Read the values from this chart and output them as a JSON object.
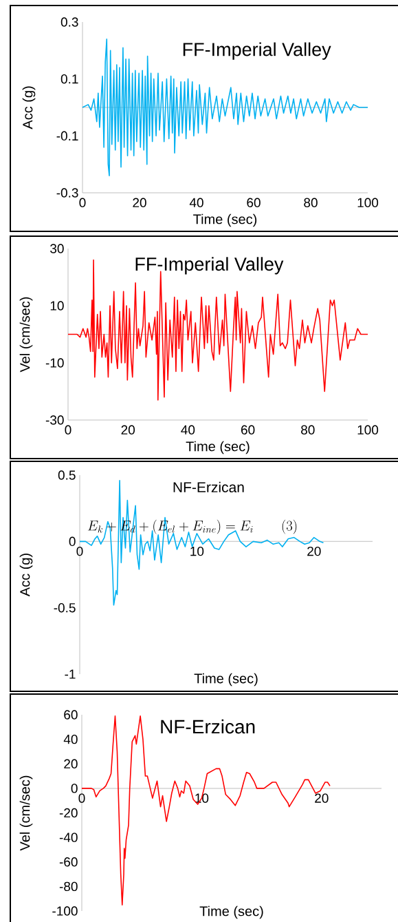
{
  "chart_data": [
    {
      "type": "line",
      "title": "FF-Imperial Valley",
      "xlabel": "Time (sec)",
      "ylabel": "Acc (g)",
      "xlim": [
        0,
        100
      ],
      "ylim": [
        -0.3,
        0.3
      ],
      "xticks": [
        0,
        20,
        40,
        60,
        80,
        100
      ],
      "yticks": [
        -0.3,
        -0.1,
        0.1,
        0.3
      ],
      "x": [
        0,
        2,
        3,
        4,
        5,
        5.5,
        6,
        7,
        7.5,
        8,
        8.5,
        9,
        9.4,
        9.8,
        10.3,
        11,
        11.5,
        12,
        12.5,
        13,
        13.5,
        14.2,
        14.6,
        15.2,
        15.8,
        16.3,
        17,
        17.5,
        18,
        18.5,
        19,
        19.8,
        20.3,
        21,
        21.5,
        22,
        22.6,
        22.8,
        23.5,
        24,
        24.5,
        25,
        25.8,
        26.5,
        27,
        28,
        28.6,
        29.5,
        30.3,
        31,
        31.5,
        32,
        32.3,
        33,
        33.8,
        34.5,
        35,
        35.8,
        36.3,
        37,
        37.6,
        38.5,
        39,
        40,
        40.6,
        41,
        42,
        43,
        43.5,
        44.5,
        45.5,
        47,
        48,
        49,
        50,
        52,
        53,
        54,
        54.5,
        55.5,
        56.5,
        57.5,
        58.5,
        59.5,
        60.5,
        61.5,
        62.5,
        64,
        65,
        67,
        68,
        69.5,
        70.5,
        72,
        73,
        74,
        75,
        76.5,
        77.5,
        79,
        80.5,
        82,
        83.5,
        85,
        85.5,
        86.5,
        88,
        89.5,
        91,
        92.5,
        94,
        95,
        97,
        100
      ],
      "series": [
        {
          "color": "#00b0f0",
          "values": [
            0,
            0.01,
            -0.01,
            0.03,
            -0.05,
            0.05,
            -0.07,
            0.11,
            -0.14,
            0.16,
            0.24,
            -0.2,
            -0.24,
            0.2,
            -0.13,
            0.13,
            -0.15,
            0.15,
            -0.12,
            0.14,
            -0.21,
            0.21,
            -0.14,
            0.17,
            -0.17,
            0.17,
            -0.15,
            0.12,
            -0.17,
            0.13,
            -0.12,
            0.12,
            -0.14,
            0.13,
            -0.15,
            0.11,
            -0.2,
            0.18,
            -0.1,
            0.12,
            -0.12,
            0.1,
            -0.1,
            0.12,
            -0.08,
            0.09,
            -0.12,
            0.1,
            -0.11,
            0.11,
            -0.09,
            0.1,
            -0.16,
            0.07,
            -0.1,
            0.09,
            -0.09,
            0.09,
            -0.11,
            0.1,
            -0.08,
            0.09,
            -0.1,
            0.06,
            -0.09,
            0.08,
            -0.06,
            0.05,
            -0.09,
            0.07,
            -0.04,
            0.04,
            -0.05,
            0.03,
            -0.03,
            0.07,
            -0.04,
            0.05,
            -0.06,
            0.05,
            -0.05,
            0.04,
            -0.03,
            0.05,
            -0.04,
            0.04,
            -0.03,
            0.03,
            -0.03,
            0.03,
            -0.04,
            0.04,
            -0.02,
            0.04,
            -0.02,
            0.03,
            -0.04,
            0.03,
            -0.03,
            0.03,
            -0.02,
            0.02,
            -0.02,
            0.03,
            -0.05,
            0.03,
            -0.02,
            0.02,
            -0.02,
            0.02,
            -0.01,
            0.01,
            0,
            0
          ]
        }
      ]
    },
    {
      "type": "line",
      "title": "FF-Imperial Valley",
      "xlabel": "Time (sec)",
      "ylabel": "Vel (cm/sec)",
      "xlim": [
        0,
        100
      ],
      "ylim": [
        -30,
        30
      ],
      "xticks": [
        0,
        20,
        40,
        60,
        80,
        100
      ],
      "yticks": [
        -30,
        -10,
        10,
        30
      ],
      "x": [
        0,
        3,
        4,
        5,
        6,
        6.5,
        7,
        7.5,
        8,
        8.3,
        8.5,
        8.9,
        9.8,
        10.3,
        10.8,
        11.3,
        12,
        12.5,
        13,
        13.4,
        14,
        14.5,
        15.3,
        15.8,
        16.5,
        17.2,
        17.8,
        18.5,
        19,
        19.5,
        19.8,
        20.5,
        21,
        21.5,
        22,
        22.5,
        23,
        23.5,
        24,
        25,
        25.5,
        26,
        27,
        28,
        29,
        29.5,
        29.8,
        30,
        30.9,
        32.1,
        32.6,
        33.3,
        34,
        34.8,
        35.5,
        36,
        36.5,
        37,
        37.5,
        38,
        38.5,
        39,
        39.5,
        40,
        41,
        41.5,
        42.5,
        43.5,
        44.5,
        45.5,
        46,
        46.5,
        47,
        48,
        48.6,
        49,
        49.5,
        50.5,
        51.5,
        52,
        52.4,
        54.2,
        55.2,
        55.8,
        56.1,
        56.4,
        57.5,
        57.9,
        58.6,
        59.5,
        60.5,
        61.5,
        62.5,
        63.5,
        64.5,
        64.9,
        66.9,
        67.5,
        68.5,
        70,
        70.8,
        71.5,
        72.5,
        73.2,
        74.2,
        75.8,
        76.5,
        77.2,
        78.2,
        79,
        80,
        81.2,
        82,
        83.3,
        84,
        85.6,
        86.5,
        87.5,
        88.2,
        88.8,
        90.8,
        92.5,
        93.3,
        94,
        95.6,
        96.6,
        97.7,
        100
      ],
      "series": [
        {
          "color": "#ff0000",
          "values": [
            0,
            0,
            -1,
            2,
            -1,
            2,
            -1,
            -6,
            12,
            -6,
            26,
            -15,
            7,
            -5,
            8,
            -8,
            0,
            -8,
            -3,
            -15,
            10,
            -10,
            15,
            -5,
            -12,
            8,
            -10,
            15,
            -10,
            10,
            -16,
            9,
            -8,
            -15,
            2,
            18,
            -5,
            2,
            -4,
            3,
            15,
            -8,
            4,
            -2,
            6,
            -7,
            8,
            -23,
            22,
            -22,
            11,
            -16,
            5,
            -8,
            13,
            -13,
            12,
            -5,
            8,
            -13,
            7,
            5,
            12,
            -2,
            8,
            -10,
            4,
            -13,
            13,
            -5,
            10,
            -3,
            10,
            -6,
            -9,
            2,
            13,
            -7,
            5,
            -4,
            14,
            -20,
            2,
            13,
            -2,
            15,
            -3,
            9,
            -17,
            8,
            -3,
            3,
            -5,
            4,
            6,
            13,
            -15,
            0,
            -7,
            14,
            -4,
            -3,
            -5,
            -3,
            12,
            -11,
            -2,
            -5,
            5,
            -3,
            3,
            -3,
            2,
            9,
            5,
            -20,
            -5,
            12,
            10,
            12,
            -9,
            4,
            -5,
            -2,
            -2,
            2,
            0,
            0
          ]
        }
      ]
    },
    {
      "type": "line",
      "title": "NF-Erzican",
      "xlabel": "Time (sec)",
      "ylabel": "Acc (g)",
      "xlim": [
        0,
        25
      ],
      "ylim": [
        -1,
        0.5
      ],
      "xticks": [
        0,
        10,
        20
      ],
      "yticks": [
        -1,
        -0.5,
        0,
        0.5
      ],
      "annotations": [
        "E_k + E_d + (E_{el} + E_{ine}) = E_i \\qquad (3)"
      ],
      "x": [
        0,
        0.5,
        1,
        1.3,
        1.5,
        1.8,
        2.1,
        2.4,
        2.6,
        2.8,
        2.9,
        3.1,
        3.2,
        3.41,
        3.54,
        3.7,
        3.9,
        4.07,
        4.3,
        4.76,
        4.9,
        5.07,
        5.2,
        5.4,
        5.6,
        5.8,
        6.0,
        6.2,
        6.39,
        6.7,
        6.96,
        7.28,
        7.6,
        8,
        8.3,
        8.7,
        9,
        9.3,
        9.6,
        10,
        10.5,
        11,
        11.5,
        11.9,
        12.3,
        12.7,
        13.3,
        13.7,
        14.2,
        14.8,
        15.5,
        16,
        16.5,
        17,
        17.3,
        17.8,
        18.3,
        18.8,
        19.2,
        19.6,
        20,
        20.5,
        20.8
      ],
      "series": [
        {
          "color": "#00b0f0",
          "values": [
            0,
            0,
            -0.03,
            0.02,
            0.04,
            -0.02,
            0.03,
            0.15,
            0.1,
            -0.2,
            -0.48,
            -0.37,
            -0.4,
            0.46,
            -0.16,
            0.18,
            -0.05,
            0.31,
            -0.08,
            0.27,
            -0.1,
            -0.21,
            0.05,
            -0.1,
            -0.02,
            0,
            -0.07,
            0.08,
            -0.14,
            0.05,
            -0.16,
            0.18,
            -0.02,
            0.06,
            -0.06,
            0.03,
            -0.04,
            0.07,
            -0.04,
            0.06,
            -0.02,
            0.02,
            -0.05,
            -0.06,
            0,
            0.05,
            0.08,
            0,
            -0.04,
            0,
            -0.01,
            0.01,
            -0.02,
            -0.01,
            -0.04,
            0.02,
            0.03,
            0,
            -0.02,
            -0.01,
            0.03,
            0,
            -0.01
          ]
        }
      ]
    },
    {
      "type": "line",
      "title": "NF-Erzican",
      "xlabel": "Time (sec)",
      "ylabel": "Vel (cm/sec)",
      "xlim": [
        0,
        25
      ],
      "ylim": [
        -100,
        60
      ],
      "xticks": [
        0,
        10,
        20
      ],
      "yticks": [
        -100,
        -80,
        -60,
        -40,
        -20,
        0,
        20,
        40,
        60
      ],
      "x": [
        0,
        0.8,
        1,
        1.19,
        1.5,
        1.8,
        2,
        2.29,
        2.44,
        2.6,
        2.78,
        2.95,
        3.1,
        3.25,
        3.37,
        3.5,
        3.54,
        3.6,
        3.7,
        3.9,
        4,
        4.2,
        4.3,
        4.45,
        4.55,
        4.88,
        5.1,
        5.3,
        5.47,
        5.9,
        6.28,
        6.57,
        6.74,
        7.06,
        7.3,
        7.5,
        7.76,
        8,
        8.17,
        8.3,
        8.5,
        8.67,
        9,
        9.3,
        9.67,
        10,
        10.2,
        10.46,
        11.2,
        11.5,
        11.7,
        12,
        12.4,
        12.8,
        13.2,
        13.5,
        13.74,
        14,
        14.4,
        14.6,
        15.2,
        15.9,
        16.2,
        16.7,
        17.2,
        17.3,
        17.8,
        18.4,
        18.6,
        18.9,
        19.5,
        19.9,
        20.3,
        20.5,
        20.7
      ],
      "series": [
        {
          "color": "#ff0000",
          "values": [
            0,
            0,
            -1,
            -7,
            -2,
            0,
            2,
            8,
            12,
            35,
            59,
            30,
            -20,
            -70,
            -95,
            -70,
            -49,
            -57,
            -42,
            -30,
            0,
            38,
            40,
            43,
            36,
            59,
            40,
            10,
            10,
            -8,
            6,
            -15,
            -6,
            -27,
            -15,
            -4,
            6,
            0,
            -7,
            -2,
            -4,
            6,
            2,
            -9,
            -13,
            -8,
            0,
            12,
            16,
            16,
            10,
            -5,
            -9,
            -14,
            -6,
            5,
            13,
            12,
            5,
            0,
            0,
            5,
            5,
            -5,
            -12,
            -15,
            -7,
            3,
            7,
            7,
            -4,
            -2,
            5,
            5,
            2
          ]
        }
      ]
    }
  ]
}
